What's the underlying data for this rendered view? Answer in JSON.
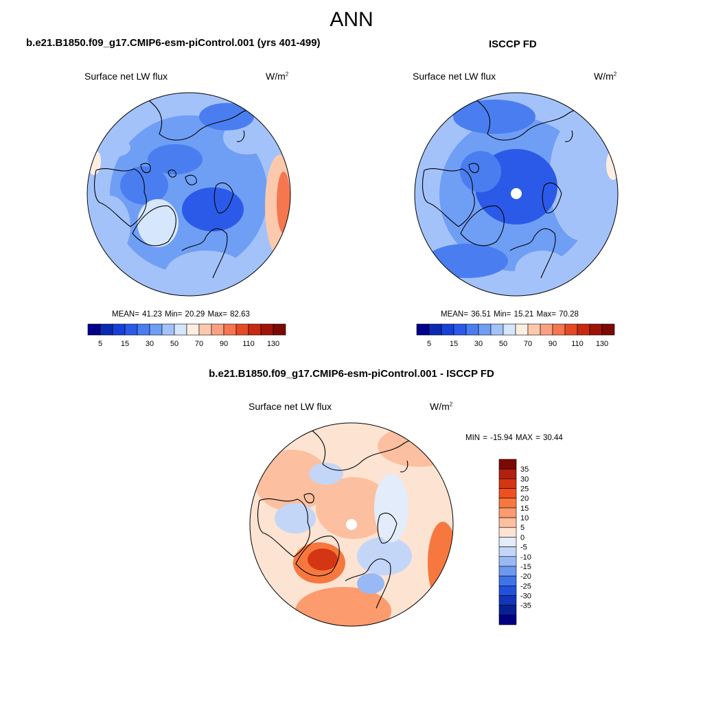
{
  "figure": {
    "title": "ANN"
  },
  "panels": {
    "model": {
      "title": "b.e21.B1850.f09_g17.CMIP6-esm-piControl.001 (yrs 401-499)",
      "variable": "Surface net LW flux",
      "units": "W/m",
      "units_exp": "2",
      "stats_text": "MEAN=  41.23  Min=  20.29  Max=  82.63"
    },
    "obs": {
      "title": "ISCCP FD",
      "variable": "Surface net LW flux",
      "units": "W/m",
      "units_exp": "2",
      "stats_text": "MEAN=  36.51  Min=  15.21  Max=  70.28"
    },
    "diff": {
      "title": "b.e21.B1850.f09_g17.CMIP6-esm-piControl.001 - ISCCP FD",
      "variable": "Surface net LW flux",
      "units": "W/m",
      "units_exp": "2",
      "stats_text": "MIN = -15.94 MAX =  30.44"
    }
  },
  "chart_data": [
    {
      "type": "heatmap",
      "projection": "north polar stereographic",
      "panel": "model",
      "title": "b.e21.B1850.f09_g17.CMIP6-esm-piControl.001 (yrs 401-499)",
      "variable": "Surface net LW flux",
      "units": "W/m2",
      "mean": 41.23,
      "min": 20.29,
      "max": 82.63,
      "colorbar": {
        "orientation": "horizontal",
        "levels": [
          5,
          10,
          15,
          20,
          30,
          40,
          50,
          60,
          70,
          80,
          90,
          100,
          110,
          120,
          130
        ],
        "tick_labels": [
          "5",
          "15",
          "30",
          "50",
          "70",
          "90",
          "110",
          "130"
        ],
        "colors": [
          "#00008b",
          "#0a2bb0",
          "#1541d6",
          "#2b5ae8",
          "#4a7ef0",
          "#6f9ef5",
          "#a4c2fa",
          "#d6e6fd",
          "#feeee2",
          "#fcc9ad",
          "#fba182",
          "#f5764f",
          "#e64a25",
          "#c72a10",
          "#9e1407",
          "#7a0a03"
        ]
      }
    },
    {
      "type": "heatmap",
      "projection": "north polar stereographic",
      "panel": "obs",
      "title": "ISCCP FD",
      "variable": "Surface net LW flux",
      "units": "W/m2",
      "mean": 36.51,
      "min": 15.21,
      "max": 70.28,
      "colorbar": {
        "orientation": "horizontal",
        "levels": [
          5,
          10,
          15,
          20,
          30,
          40,
          50,
          60,
          70,
          80,
          90,
          100,
          110,
          120,
          130
        ],
        "tick_labels": [
          "5",
          "15",
          "30",
          "50",
          "70",
          "90",
          "110",
          "130"
        ],
        "colors": [
          "#00008b",
          "#0a2bb0",
          "#1541d6",
          "#2b5ae8",
          "#4a7ef0",
          "#6f9ef5",
          "#a4c2fa",
          "#d6e6fd",
          "#feeee2",
          "#fcc9ad",
          "#fba182",
          "#f5764f",
          "#e64a25",
          "#c72a10",
          "#9e1407",
          "#7a0a03"
        ]
      }
    },
    {
      "type": "heatmap",
      "projection": "north polar stereographic",
      "panel": "diff",
      "title": "b.e21.B1850.f09_g17.CMIP6-esm-piControl.001 - ISCCP FD",
      "variable": "Surface net LW flux",
      "units": "W/m2",
      "min": -15.94,
      "max": 30.44,
      "colorbar": {
        "orientation": "vertical",
        "levels": [
          35,
          30,
          25,
          20,
          15,
          10,
          5,
          0,
          -5,
          -10,
          -15,
          -20,
          -25,
          -30,
          -35
        ],
        "tick_labels": [
          "35",
          "30",
          "25",
          "20",
          "15",
          "10",
          "5",
          "0",
          "-5",
          "-10",
          "-15",
          "-20",
          "-25",
          "-30",
          "-35"
        ],
        "colors": [
          "#7a0a03",
          "#b0200d",
          "#d43512",
          "#f05020",
          "#f7783f",
          "#fb9b6e",
          "#fcbf9f",
          "#fde3d2",
          "#e3ecfa",
          "#c3d6f8",
          "#98b9f4",
          "#6c98ef",
          "#3f73ea",
          "#2451dc",
          "#1235bb",
          "#072095",
          "#000080"
        ]
      }
    }
  ],
  "palette": {
    "land_outline": "#000000"
  }
}
